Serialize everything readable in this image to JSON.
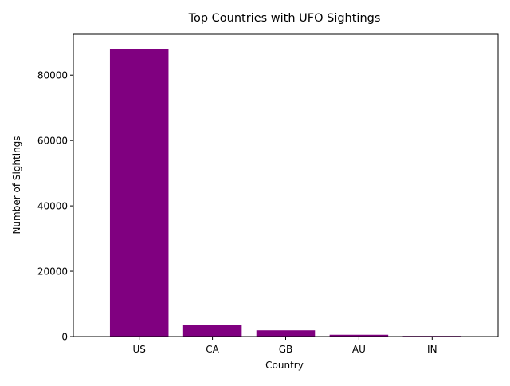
{
  "chart_data": {
    "type": "bar",
    "title": "Top Countries with UFO Sightings",
    "xlabel": "Country",
    "ylabel": "Number of Sightings",
    "categories": [
      "US",
      "CA",
      "GB",
      "AU",
      "IN"
    ],
    "values": [
      88100,
      3450,
      1900,
      550,
      200
    ],
    "ylim": [
      0,
      92500
    ],
    "yticks": [
      0,
      20000,
      40000,
      60000,
      80000
    ],
    "bar_color": "#800080",
    "grid": false,
    "legend": "none"
  }
}
